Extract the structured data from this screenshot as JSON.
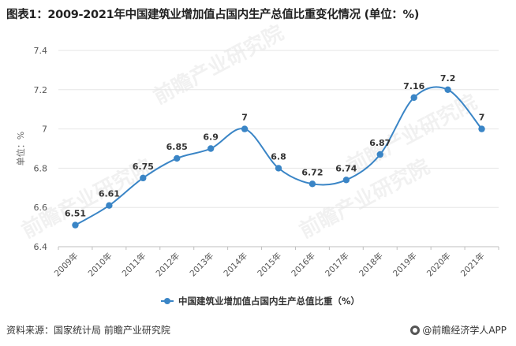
{
  "header": {
    "title": "图表1：2009-2021年中国建筑业增加值占国内生产总值比重变化情况 (单位：%)"
  },
  "footer": {
    "source": "资料来源：国家统计局 前瞻产业研究院",
    "brand": "@前瞻经济学人APP"
  },
  "watermark": "前瞻产业研究院",
  "chart_data": {
    "type": "line",
    "title": "图表1：2009-2021年中国建筑业增加值占国内生产总值比重变化情况 (单位：%)",
    "categories": [
      "2009年",
      "2010年",
      "2011年",
      "2012年",
      "2013年",
      "2014年",
      "2015年",
      "2016年",
      "2017年",
      "2018年",
      "2019年",
      "2020年",
      "2021年"
    ],
    "series": [
      {
        "name": "中国建筑业增加值占国内生产总值比重（%）",
        "values": [
          6.51,
          6.61,
          6.75,
          6.85,
          6.9,
          7,
          6.8,
          6.72,
          6.74,
          6.87,
          7.16,
          7.2,
          7
        ],
        "labels": [
          "6.51",
          "6.61",
          "6.75",
          "6.85",
          "6.9",
          "7",
          "6.8",
          "6.72",
          "6.74",
          "6.87",
          "7.16",
          "7.2",
          "7"
        ],
        "color": "#3a85c6"
      }
    ],
    "ylabel": "单位：%",
    "xlabel": "",
    "ylim": [
      6.4,
      7.4
    ],
    "yticks": [
      "6.4",
      "6.6",
      "6.8",
      "7",
      "7.2",
      "7.4"
    ],
    "grid": true,
    "legend": "bottom",
    "smooth": true
  }
}
